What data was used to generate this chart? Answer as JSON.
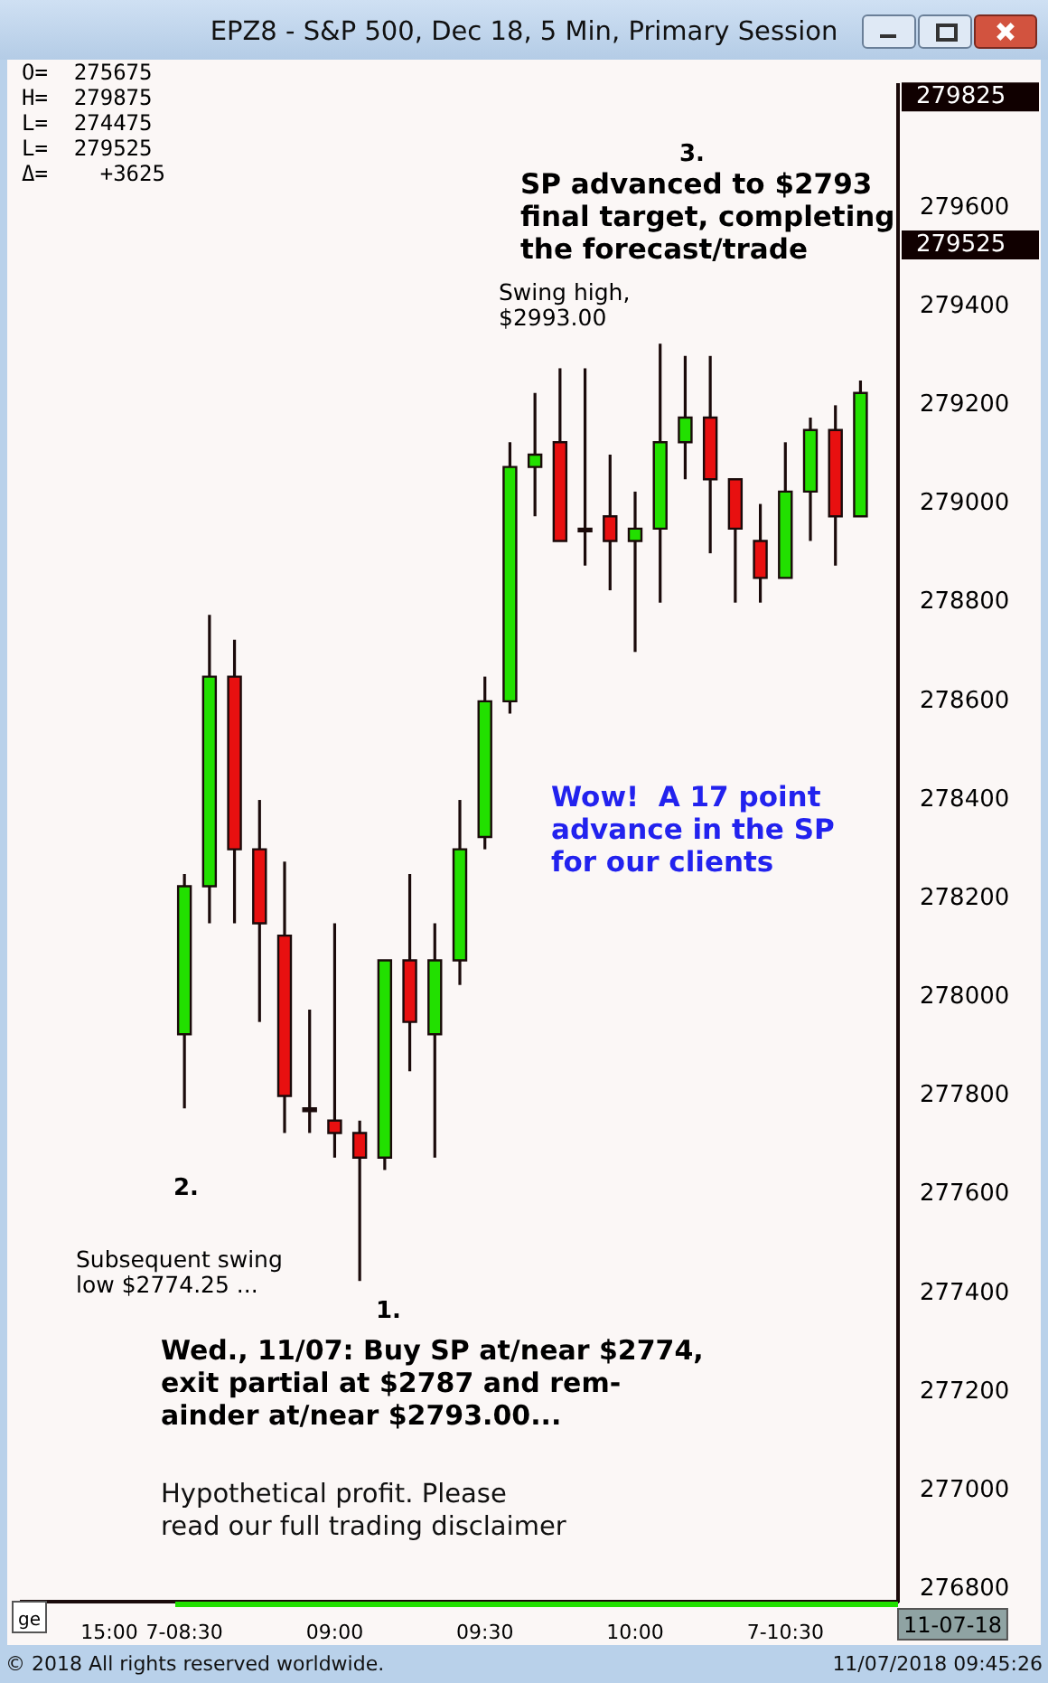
{
  "chart_data": {
    "type": "candlestick",
    "title": "EPZ8 - S&P 500, Dec 18, 5 Min, Primary Session",
    "categories": [
      null,
      null,
      null,
      "15:00",
      null,
      null,
      "7-08:30",
      null,
      null,
      null,
      null,
      null,
      "09:00",
      null,
      null,
      null,
      null,
      null,
      "09:30",
      null,
      null,
      null,
      null,
      null,
      "10:00",
      null,
      null,
      null,
      null,
      null,
      "7-10:30",
      null,
      null,
      null,
      null
    ],
    "ohlc": [
      null,
      null,
      null,
      null,
      null,
      null,
      [
        277925,
        278250,
        277775,
        278225
      ],
      [
        278225,
        278775,
        278150,
        278650
      ],
      [
        278650,
        278725,
        278150,
        278300
      ],
      [
        278300,
        278400,
        277950,
        278150
      ],
      [
        278125,
        278275,
        277725,
        277800
      ],
      [
        277775,
        277975,
        277725,
        277775
      ],
      [
        277750,
        278150,
        277675,
        277725
      ],
      [
        277725,
        277750,
        277425,
        277675
      ],
      [
        277675,
        278075,
        277650,
        278075
      ],
      [
        278075,
        278250,
        277850,
        277950
      ],
      [
        277925,
        278150,
        277675,
        278075
      ],
      [
        278075,
        278400,
        278025,
        278300
      ],
      [
        278325,
        278650,
        278300,
        278600
      ],
      [
        278600,
        279125,
        278575,
        279075
      ],
      [
        279075,
        279225,
        278975,
        279100
      ],
      [
        279125,
        279275,
        278925,
        278925
      ],
      [
        278950,
        279275,
        278875,
        278950
      ],
      [
        278975,
        279100,
        278825,
        278925
      ],
      [
        278925,
        279025,
        278700,
        278950
      ],
      [
        278950,
        279325,
        278800,
        279125
      ],
      [
        279125,
        279300,
        279050,
        279175
      ],
      [
        279175,
        279300,
        278900,
        279050
      ],
      [
        279050,
        279050,
        278800,
        278950
      ],
      [
        278925,
        279000,
        278800,
        278850
      ],
      [
        278850,
        279125,
        278850,
        279025
      ],
      [
        279025,
        279175,
        278925,
        279150
      ],
      [
        279150,
        279200,
        278875,
        278975
      ],
      [
        278975,
        279250,
        278975,
        279225
      ],
      null
    ],
    "colors": [
      null,
      null,
      null,
      null,
      null,
      null,
      "#22e000",
      "#22e000",
      "#e81010",
      "#e81010",
      "#e81010",
      "#200808",
      "#e81010",
      "#e81010",
      "#22e000",
      "#e81010",
      "#22e000",
      "#22e000",
      "#22e000",
      "#22e000",
      "#22e000",
      "#e81010",
      "#200808",
      "#e81010",
      "#22e000",
      "#22e000",
      "#22e000",
      "#e81010",
      "#e81010",
      "#e81010",
      "#22e000",
      "#22e000",
      "#e81010",
      "#22e000",
      null
    ],
    "ylim": [
      276775,
      279850
    ],
    "yticks": [
      276800,
      277000,
      277200,
      277400,
      277600,
      277800,
      278000,
      278200,
      278400,
      278600,
      278800,
      279000,
      279200,
      279400,
      279525,
      279600,
      279825
    ],
    "annotations": [
      "O=  275675\nH=  279875\nL=  274475\nL=  279525\nΔ=    +3625",
      "3.",
      "SP advanced to $2793\nfinal target, completing\nthe forecast/trade",
      "Swing high,\n$2993.00",
      "Wow!  A 17 point\nadvance in the SP\nfor our clients",
      "2.",
      "Subsequent swing\nlow $2774.25 ...",
      "1.",
      "Wed., 11/07: Buy SP at/near $2774,\nexit partial at $2787 and rem-\nainder at/near $2793.00...",
      "Hypothetical profit. Please\nread our full trading disclaimer",
      "ge",
      "11-07-18",
      "© 2018 All rights reserved worldwide.",
      "11/07/2018 09:45:26"
    ]
  }
}
